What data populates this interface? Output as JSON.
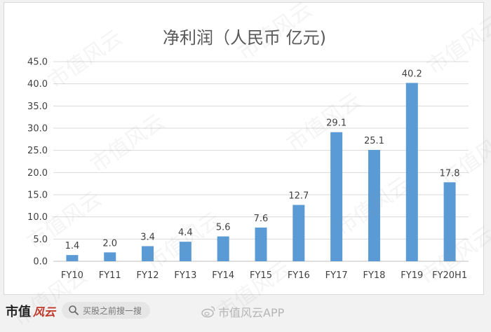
{
  "chart_data": {
    "type": "bar",
    "title": "净利润（人民币 亿元)",
    "categories": [
      "FY10",
      "FY11",
      "FY12",
      "FY13",
      "FY14",
      "FY15",
      "FY16",
      "FY17",
      "FY18",
      "FY19",
      "FY20H1"
    ],
    "values": [
      1.4,
      2.0,
      3.4,
      4.4,
      5.6,
      7.6,
      12.7,
      29.1,
      25.1,
      40.2,
      17.8
    ],
    "value_labels": [
      "1.4",
      "2.0",
      "3.4",
      "4.4",
      "5.6",
      "7.6",
      "12.7",
      "29.1",
      "25.1",
      "40.2",
      "17.8"
    ],
    "ylim": [
      0,
      45
    ],
    "yticks": [
      "0.0",
      "5.0",
      "10.0",
      "15.0",
      "20.0",
      "25.0",
      "30.0",
      "35.0",
      "40.0",
      "45.0"
    ],
    "xlabel": "",
    "ylabel": "",
    "grid": true,
    "bar_color": "#5b9bd5",
    "grid_color": "#d9d9d9",
    "text_color": "#404040"
  },
  "watermark": "市值风云",
  "footer": {
    "brand_text": "市值",
    "brand_script": "风云",
    "search_placeholder": "买股之前搜一搜",
    "weibo_handle": "市值风云APP"
  }
}
